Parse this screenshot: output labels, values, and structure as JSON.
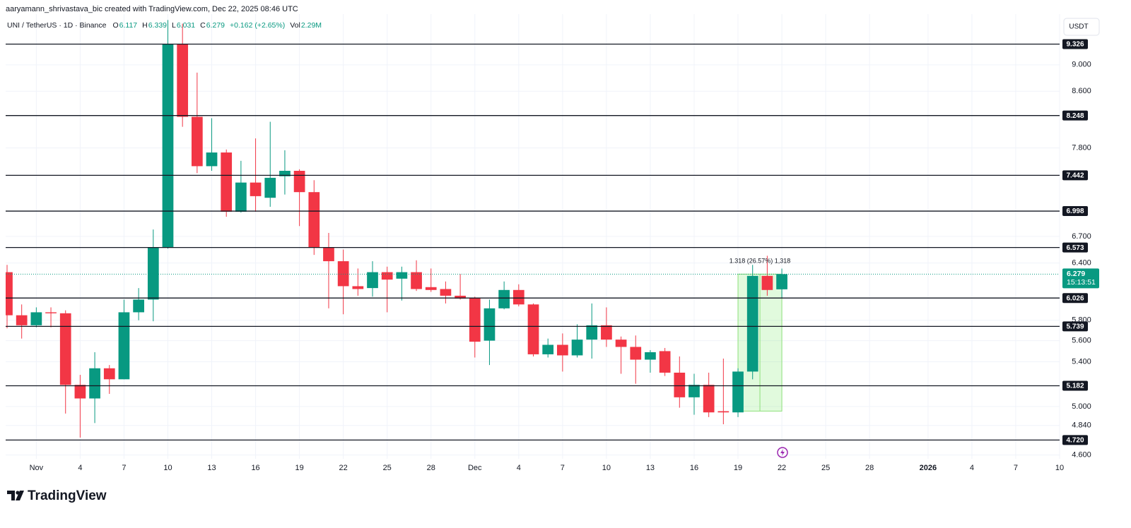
{
  "header": {
    "attribution": "aaryamann_shrivastava_bic created with TradingView.com, Dec 22, 2025 08:46 UTC"
  },
  "chart_data": {
    "type": "candlestick",
    "symbol": "UNI / TetherUS · 1D · Binance",
    "legend": [
      {
        "label": "O",
        "value": 6.117
      },
      {
        "label": "H",
        "value": 6.339
      },
      {
        "label": "L",
        "value": 6.031
      },
      {
        "label": "C",
        "value": 6.279
      },
      {
        "value": "+0.162 (+2.65%)"
      },
      {
        "label": "Vol",
        "value": "2.29M"
      }
    ],
    "currency": "USDT",
    "x": [
      "2025-10-30",
      "2025-10-31",
      "2025-11-01",
      "2025-11-02",
      "2025-11-03",
      "2025-11-04",
      "2025-11-05",
      "2025-11-06",
      "2025-11-07",
      "2025-11-08",
      "2025-11-09",
      "2025-11-10",
      "2025-11-11",
      "2025-11-12",
      "2025-11-13",
      "2025-11-14",
      "2025-11-15",
      "2025-11-16",
      "2025-11-17",
      "2025-11-18",
      "2025-11-19",
      "2025-11-20",
      "2025-11-21",
      "2025-11-22",
      "2025-11-23",
      "2025-11-24",
      "2025-11-25",
      "2025-11-26",
      "2025-11-27",
      "2025-11-28",
      "2025-11-29",
      "2025-11-30",
      "2025-12-01",
      "2025-12-02",
      "2025-12-03",
      "2025-12-04",
      "2025-12-05",
      "2025-12-06",
      "2025-12-07",
      "2025-12-08",
      "2025-12-09",
      "2025-12-10",
      "2025-12-11",
      "2025-12-12",
      "2025-12-13",
      "2025-12-14",
      "2025-12-15",
      "2025-12-16",
      "2025-12-17",
      "2025-12-18",
      "2025-12-19",
      "2025-12-20",
      "2025-12-21",
      "2025-12-22"
    ],
    "open": [
      6.3,
      5.85,
      5.75,
      5.88,
      5.87,
      5.19,
      5.07,
      5.34,
      5.24,
      5.88,
      6.01,
      6.57,
      9.33,
      8.23,
      7.56,
      7.74,
      6.99,
      7.35,
      7.16,
      7.43,
      7.5,
      7.23,
      6.57,
      6.42,
      6.15,
      6.13,
      6.3,
      6.23,
      6.3,
      6.14,
      6.12,
      6.05,
      6.03,
      5.6,
      5.92,
      6.11,
      5.96,
      5.47,
      5.56,
      5.46,
      5.61,
      5.75,
      5.61,
      5.54,
      5.42,
      5.5,
      5.3,
      5.08,
      5.19,
      4.96,
      4.95,
      5.31,
      6.26,
      6.117
    ],
    "high": [
      6.38,
      5.96,
      5.93,
      5.93,
      5.9,
      5.28,
      5.49,
      5.37,
      6.01,
      6.13,
      6.78,
      9.72,
      9.66,
      8.88,
      8.21,
      7.78,
      7.63,
      7.93,
      8.16,
      7.77,
      7.52,
      7.38,
      6.74,
      6.55,
      6.34,
      6.42,
      6.36,
      6.36,
      6.43,
      6.34,
      6.2,
      6.28,
      6.04,
      6.01,
      6.2,
      6.17,
      5.97,
      5.62,
      5.67,
      5.76,
      5.97,
      5.93,
      5.64,
      5.65,
      5.51,
      5.53,
      5.45,
      5.29,
      5.3,
      5.43,
      5.34,
      6.38,
      6.48,
      6.339
    ],
    "low": [
      5.72,
      5.62,
      5.73,
      5.73,
      4.94,
      4.74,
      4.86,
      5.11,
      5.24,
      5.8,
      5.79,
      6.56,
      8.09,
      7.47,
      7.5,
      6.93,
      6.98,
      6.99,
      7.05,
      7.2,
      6.82,
      6.49,
      5.92,
      5.86,
      6.05,
      6.04,
      5.88,
      6.0,
      6.1,
      6.09,
      5.97,
      6.01,
      5.44,
      5.37,
      5.91,
      5.94,
      5.45,
      5.44,
      5.31,
      5.44,
      5.43,
      5.54,
      5.29,
      5.2,
      5.3,
      5.27,
      4.99,
      4.93,
      4.91,
      4.85,
      4.91,
      5.24,
      6.05,
      6.031
    ],
    "close": [
      5.85,
      5.75,
      5.88,
      5.87,
      5.19,
      5.07,
      5.34,
      5.24,
      5.88,
      6.01,
      6.57,
      9.33,
      8.23,
      7.56,
      7.74,
      6.99,
      7.35,
      7.18,
      7.41,
      7.5,
      7.23,
      6.57,
      6.42,
      6.15,
      6.12,
      6.3,
      6.22,
      6.3,
      6.12,
      6.11,
      6.05,
      6.02,
      5.59,
      5.92,
      6.11,
      5.96,
      5.47,
      5.56,
      5.46,
      5.61,
      5.75,
      5.61,
      5.54,
      5.42,
      5.49,
      5.3,
      5.08,
      5.19,
      4.95,
      4.95,
      5.31,
      6.26,
      6.11,
      6.279
    ],
    "up_color": "#089981",
    "down_color": "#f23645",
    "log_scale": true,
    "grid": true,
    "xlim": [
      "2025-10-30",
      "2026-01-10"
    ],
    "xticks": [
      {
        "value": "2025-11-01",
        "label": "Nov"
      },
      {
        "value": "2025-11-04",
        "label": "4"
      },
      {
        "value": "2025-11-07",
        "label": "7"
      },
      {
        "value": "2025-11-10",
        "label": "10"
      },
      {
        "value": "2025-11-13",
        "label": "13"
      },
      {
        "value": "2025-11-16",
        "label": "16"
      },
      {
        "value": "2025-11-19",
        "label": "19"
      },
      {
        "value": "2025-11-22",
        "label": "22"
      },
      {
        "value": "2025-11-25",
        "label": "25"
      },
      {
        "value": "2025-11-28",
        "label": "28"
      },
      {
        "value": "2025-12-01",
        "label": "Dec"
      },
      {
        "value": "2025-12-04",
        "label": "4"
      },
      {
        "value": "2025-12-07",
        "label": "7"
      },
      {
        "value": "2025-12-10",
        "label": "10"
      },
      {
        "value": "2025-12-13",
        "label": "13"
      },
      {
        "value": "2025-12-16",
        "label": "16"
      },
      {
        "value": "2025-12-19",
        "label": "19"
      },
      {
        "value": "2025-12-22",
        "label": "22"
      },
      {
        "value": "2025-12-25",
        "label": "25"
      },
      {
        "value": "2025-12-28",
        "label": "28"
      },
      {
        "value": "2026-01-01",
        "label": "2026"
      },
      {
        "value": "2026-01-04",
        "label": "4"
      },
      {
        "value": "2026-01-07",
        "label": "7"
      },
      {
        "value": "2026-01-10",
        "label": "10"
      }
    ],
    "ylim": [
      4.57,
      9.82
    ],
    "yticks": [
      {
        "value": 9,
        "label": "9.000"
      },
      {
        "value": 8.6,
        "label": "8.600"
      },
      {
        "value": 7.8,
        "label": "7.800"
      },
      {
        "value": 6.7,
        "label": "6.700"
      },
      {
        "value": 6.4,
        "label": "6.400"
      },
      {
        "value": 5.8,
        "label": "5.800"
      },
      {
        "value": 5.6,
        "label": "5.600"
      },
      {
        "value": 5.4,
        "label": "5.400"
      },
      {
        "value": 5,
        "label": "5.000"
      },
      {
        "value": 4.84,
        "label": "4.840"
      },
      {
        "value": 4.6,
        "label": "4.600"
      }
    ],
    "levels": [
      9.326,
      8.248,
      7.442,
      6.998,
      6.573,
      6.026,
      5.739,
      5.182,
      {
        "value": 4.72,
        "label": "4.720"
      }
    ],
    "last_price": {
      "value": 6.279,
      "countdown": "15:13:51"
    },
    "measure": {
      "label": "1.318 (26.57%) 1,318",
      "from": 4.961,
      "to": 6.279,
      "start": "2025-12-19",
      "end": "2025-12-22"
    }
  },
  "footer": {
    "brand": "TradingView"
  }
}
